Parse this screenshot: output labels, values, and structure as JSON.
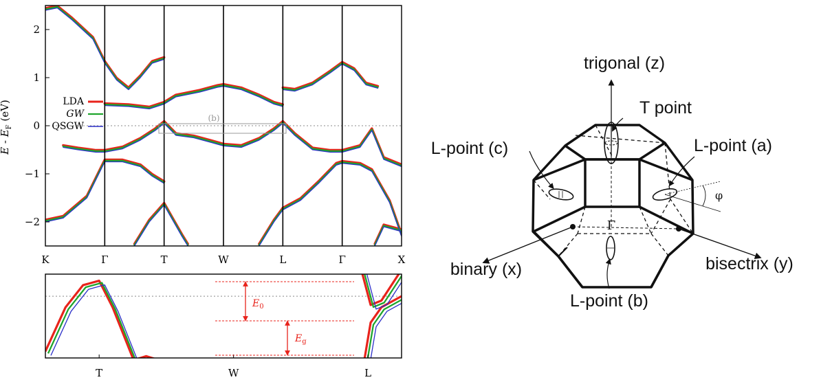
{
  "chart_data": [
    {
      "type": "line",
      "title": "",
      "xlabel": "",
      "ylabel": "E - E_F (eV)",
      "ylabel_parts": {
        "e": "E",
        "sep": " - ",
        "ef": "E",
        "f": "F",
        "unit": " (eV)"
      },
      "ylim": [
        -2.5,
        2.5
      ],
      "y_ticks": [
        "2",
        "1",
        "0",
        "−1",
        "−2"
      ],
      "y_tick_values": [
        2,
        1,
        0,
        -1,
        -2
      ],
      "k_labels": [
        "K",
        "Γ",
        "T",
        "W",
        "L",
        "Γ",
        "X"
      ],
      "k_positions": [
        0,
        1,
        2,
        3,
        4,
        5,
        6
      ],
      "legend": [
        "LDA",
        "GW",
        "QSGW"
      ],
      "legend_placement": "left",
      "inset_marker_label": "(b)",
      "fermi_level": 0,
      "series_colors": {
        "LDA": "#e8231b",
        "GW": "#1fa52c",
        "QSGW": "#2b2fc8"
      },
      "bands_lda": [
        [
          [
            0,
            2.4
          ],
          [
            0.2,
            2.45
          ],
          [
            0.45,
            2.2
          ],
          [
            0.8,
            1.8
          ],
          [
            1,
            1.3
          ],
          [
            1.2,
            0.95
          ],
          [
            1.4,
            0.75
          ],
          [
            1.6,
            1.0
          ],
          [
            1.8,
            1.3
          ],
          [
            2,
            1.38
          ]
        ],
        [
          [
            0,
            -2.0
          ],
          [
            0.3,
            -1.92
          ],
          [
            0.7,
            -1.5
          ],
          [
            1,
            -0.75
          ],
          [
            1.3,
            -0.75
          ],
          [
            1.6,
            -0.85
          ],
          [
            1.8,
            -1.05
          ],
          [
            2,
            -1.2
          ]
        ],
        [
          [
            0.3,
            -0.45
          ],
          [
            0.55,
            -0.5
          ],
          [
            0.85,
            -0.55
          ],
          [
            1,
            -0.55
          ],
          [
            1.3,
            -0.48
          ],
          [
            1.6,
            -0.3
          ],
          [
            1.85,
            -0.1
          ],
          [
            2,
            0.05
          ]
        ],
        [
          [
            1,
            0.42
          ],
          [
            1.4,
            0.4
          ],
          [
            1.75,
            0.35
          ],
          [
            2,
            0.45
          ]
        ],
        [
          [
            2,
            0.45
          ],
          [
            2.2,
            0.6
          ],
          [
            2.6,
            0.7
          ],
          [
            2.9,
            0.8
          ],
          [
            3,
            0.82
          ],
          [
            3.3,
            0.75
          ],
          [
            3.6,
            0.6
          ],
          [
            3.85,
            0.45
          ],
          [
            4,
            0.4
          ]
        ],
        [
          [
            2,
            0.05
          ],
          [
            2.2,
            -0.2
          ],
          [
            2.5,
            -0.25
          ],
          [
            2.8,
            -0.35
          ],
          [
            3,
            -0.42
          ],
          [
            3.3,
            -0.45
          ],
          [
            3.6,
            -0.3
          ],
          [
            3.85,
            -0.1
          ],
          [
            4,
            0.05
          ]
        ],
        [
          [
            4,
            0.05
          ],
          [
            4.2,
            -0.2
          ],
          [
            4.5,
            -0.5
          ],
          [
            4.8,
            -0.55
          ],
          [
            5,
            -0.55
          ],
          [
            5.3,
            -0.45
          ],
          [
            5.5,
            -0.1
          ],
          [
            5.7,
            -0.7
          ],
          [
            6,
            -0.85
          ]
        ],
        [
          [
            4,
            -1.75
          ],
          [
            4.3,
            -1.55
          ],
          [
            4.6,
            -1.2
          ],
          [
            4.9,
            -0.82
          ],
          [
            5,
            -0.78
          ],
          [
            5.3,
            -0.82
          ],
          [
            5.5,
            -0.95
          ],
          [
            5.8,
            -1.6
          ],
          [
            6,
            -2.3
          ]
        ],
        [
          [
            4,
            0.75
          ],
          [
            4.2,
            0.72
          ],
          [
            4.5,
            0.85
          ],
          [
            4.8,
            1.1
          ],
          [
            5,
            1.28
          ],
          [
            5.2,
            1.15
          ],
          [
            5.4,
            0.85
          ],
          [
            5.6,
            0.78
          ]
        ],
        [
          [
            1.5,
            -2.5
          ],
          [
            1.75,
            -2.0
          ],
          [
            2,
            -1.65
          ],
          [
            2.3,
            -2.3
          ],
          [
            2.4,
            -2.5
          ]
        ],
        [
          [
            3.6,
            -2.5
          ],
          [
            3.85,
            -2.0
          ],
          [
            4,
            -1.75
          ]
        ],
        [
          [
            5.55,
            -2.5
          ],
          [
            5.7,
            -2.1
          ],
          [
            6,
            -2.2
          ]
        ]
      ]
    },
    {
      "type": "line",
      "title": "",
      "k_labels": [
        "T",
        "W",
        "L"
      ],
      "k_positions": [
        2,
        3,
        4
      ],
      "annotations": [
        "E0",
        "Eg"
      ],
      "annotation_parts": [
        {
          "main": "E",
          "sub": "0"
        },
        {
          "main": "E",
          "sub": "g"
        }
      ],
      "xlim": [
        1.6,
        4.25
      ],
      "ylim": [
        -0.28,
        0.1
      ]
    }
  ],
  "diagram": {
    "labels": {
      "trigonal": "trigonal (z)",
      "t_point": "T point",
      "l_point_a": "L-point (a)",
      "l_point_b": "L-point (b)",
      "l_point_c": "L-point (c)",
      "binary": "binary (x)",
      "bisectrix": "bisectrix (y)",
      "gamma": "Γ",
      "phi": "φ"
    }
  }
}
